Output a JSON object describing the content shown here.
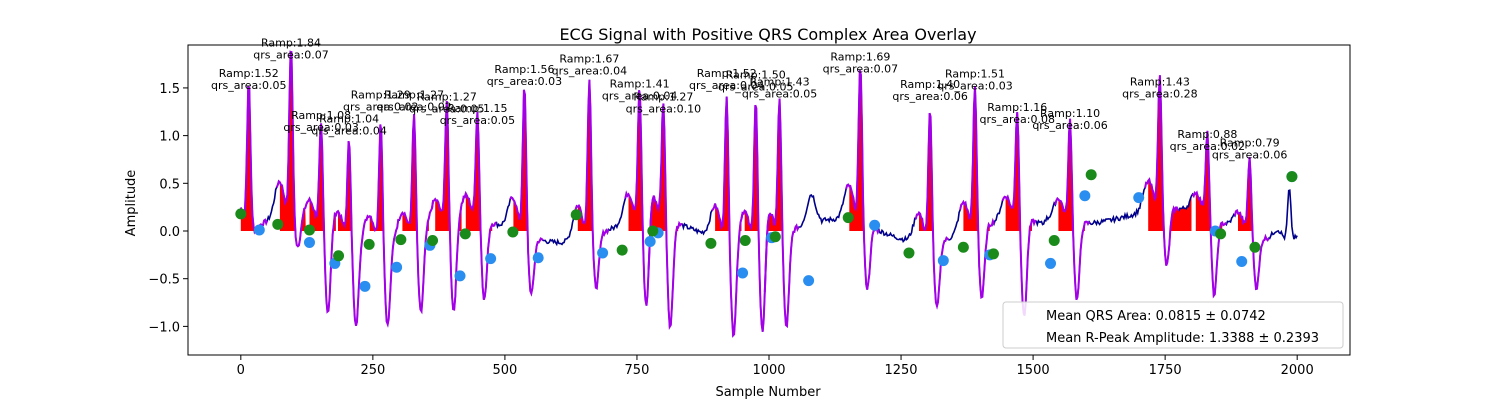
{
  "chart_data": {
    "type": "line",
    "title": "ECG Signal with Positive QRS Complex Area Overlay",
    "xlabel": "Sample Number",
    "ylabel": "Amplitude",
    "xlim": [
      -100,
      2100
    ],
    "ylim": [
      -1.3,
      1.95
    ],
    "xticks": [
      0,
      250,
      500,
      750,
      1000,
      1250,
      1500,
      1750,
      2000
    ],
    "xtick_labels": [
      "0",
      "250",
      "500",
      "750",
      "1000",
      "1250",
      "1500",
      "1750",
      "2000"
    ],
    "yticks": [
      -1.0,
      -0.5,
      0.0,
      0.5,
      1.0,
      1.5
    ],
    "ytick_labels": [
      "−1.0",
      "−0.5",
      "0.0",
      "0.5",
      "1.0",
      "1.5"
    ],
    "grid": false,
    "legend": {
      "placement": "lower right",
      "entries": [
        "Mean QRS Area: 0.0815 ± 0.0742",
        "Mean R-Peak Amplitude: 1.3388 ± 0.2393"
      ]
    },
    "colors": {
      "signal": "#00008b",
      "qrs_segment": "#a300e8",
      "area_fill": "#ff0000",
      "onset_marker": "#1a8a1a",
      "offset_marker": "#2a8ef0"
    },
    "series": [
      {
        "name": "Positive QRS Area",
        "note": "red shaded region under positive signal"
      },
      {
        "name": "QRS onset",
        "marker": "green dot"
      },
      {
        "name": "QRS offset",
        "marker": "blue dot"
      }
    ],
    "beats": [
      {
        "x": 15,
        "ramp": "1.52",
        "area": "0.05",
        "onset": [
          0,
          0.18
        ],
        "offset": [
          35,
          0.01
        ],
        "dip": -0.05
      },
      {
        "x": 95,
        "ramp": "1.84",
        "area": "0.07",
        "onset": [
          70,
          0.07
        ],
        "offset": [
          130,
          -0.12
        ],
        "dip": -0.28
      },
      {
        "x": 152,
        "ramp": "1.08",
        "area": "0.03",
        "onset": [
          130,
          0.01
        ],
        "offset": [
          178,
          -0.34
        ],
        "dip": -0.9
      },
      {
        "x": 205,
        "ramp": "1.04",
        "area": "0.04",
        "onset": [
          185,
          -0.26
        ],
        "offset": [
          235,
          -0.58
        ],
        "dip": -0.93
      },
      {
        "x": 265,
        "ramp": "1.29",
        "area": "0.02",
        "onset": [
          243,
          -0.14
        ],
        "offset": [
          295,
          -0.38
        ],
        "dip": -0.88
      },
      {
        "x": 328,
        "ramp": "1.27",
        "area": "0.02",
        "onset": [
          303,
          -0.09
        ],
        "offset": [
          358,
          -0.15
        ],
        "dip": -0.85
      },
      {
        "x": 390,
        "ramp": "1.27",
        "area": "0.05",
        "onset": [
          363,
          -0.1
        ],
        "offset": [
          415,
          -0.47
        ],
        "dip": -0.95
      },
      {
        "x": 448,
        "ramp": "1.15",
        "area": "0.05",
        "onset": [
          425,
          -0.03
        ],
        "offset": [
          473,
          -0.29
        ],
        "dip": -0.82
      },
      {
        "x": 537,
        "ramp": "1.56",
        "area": "0.03",
        "onset": [
          515,
          -0.01
        ],
        "offset": [
          563,
          -0.28
        ],
        "dip": -0.6
      },
      {
        "x": 660,
        "ramp": "1.67",
        "area": "0.04",
        "onset": [
          635,
          0.17
        ],
        "offset": [
          685,
          -0.23
        ],
        "dip": -0.55
      },
      {
        "x": 755,
        "ramp": "1.41",
        "area": "0.04",
        "onset": [
          722,
          -0.2
        ],
        "offset": [
          775,
          -0.11
        ],
        "dip": -1.05
      },
      {
        "x": 800,
        "ramp": "1.27",
        "area": "0.10",
        "onset": [
          780,
          0.0
        ],
        "offset": [
          790,
          -0.02
        ],
        "dip": -1.1
      },
      {
        "x": 920,
        "ramp": "1.52",
        "area": "0.04",
        "onset": [
          890,
          -0.13
        ],
        "offset": [
          950,
          -0.44
        ],
        "dip": -1.0
      },
      {
        "x": 975,
        "ramp": "1.50",
        "area": "0.05",
        "onset": [
          955,
          -0.1
        ],
        "offset": [
          1005,
          -0.07
        ],
        "dip": -1.12
      },
      {
        "x": 1020,
        "ramp": "1.43",
        "area": "0.05",
        "onset": [
          1012,
          -0.06
        ],
        "offset": [
          1075,
          -0.52
        ],
        "dip": -1.0
      },
      {
        "x": 1173,
        "ramp": "1.69",
        "area": "0.07",
        "onset": [
          1150,
          0.14
        ],
        "offset": [
          1200,
          0.06
        ],
        "dip": -0.65
      },
      {
        "x": 1305,
        "ramp": "1.40",
        "area": "0.06",
        "onset": [
          1265,
          -0.23
        ],
        "offset": [
          1330,
          -0.31
        ],
        "dip": -0.7
      },
      {
        "x": 1390,
        "ramp": "1.51",
        "area": "0.03",
        "onset": [
          1368,
          -0.17
        ],
        "offset": [
          1418,
          -0.25
        ],
        "dip": -0.75
      },
      {
        "x": 1470,
        "ramp": "1.16",
        "area": "0.08",
        "onset": [
          1425,
          -0.24
        ],
        "offset": [
          1533,
          -0.34
        ],
        "dip": -1.02
      },
      {
        "x": 1570,
        "ramp": "1.10",
        "area": "0.06",
        "onset": [
          1540,
          -0.1
        ],
        "offset": [
          1598,
          0.37
        ],
        "dip": -0.8
      },
      {
        "x": 1740,
        "ramp": "1.43",
        "area": "0.28",
        "onset": [
          1610,
          0.59
        ],
        "offset": [
          1700,
          0.35
        ],
        "dip": -0.6
      },
      {
        "x": 1830,
        "ramp": "0.88",
        "area": "0.02",
        "onset": [
          1855,
          -0.03
        ],
        "offset": [
          1845,
          0.0
        ],
        "dip": -0.78
      },
      {
        "x": 1910,
        "ramp": "0.79",
        "area": "0.06",
        "onset": [
          1920,
          -0.17
        ],
        "offset": [
          1895,
          -0.32
        ],
        "dip": -0.55
      },
      {
        "x": 1985,
        "ramp": "",
        "area": "",
        "onset": [
          1990,
          0.57
        ],
        "offset": [
          1990,
          0.57
        ],
        "dip": 0.05
      }
    ],
    "annotations": [
      {
        "lines": [
          "Ramp:1.52",
          "qrs_area:0.05"
        ],
        "x": 15,
        "y": 1.47
      },
      {
        "lines": [
          "Ramp:1.84",
          "qrs_area:0.07"
        ],
        "x": 95,
        "y": 1.79
      },
      {
        "lines": [
          "Ramp:1.08",
          "qrs_area:0.03"
        ],
        "x": 152,
        "y": 1.03
      },
      {
        "lines": [
          "Ramp:1.04",
          "qrs_area:0.04"
        ],
        "x": 205,
        "y": 0.99
      },
      {
        "lines": [
          "Ramp:1.29",
          "qrs_area:0.02"
        ],
        "x": 265,
        "y": 1.24
      },
      {
        "lines": [
          "Ramp:1.27",
          "qrs_area:0.02"
        ],
        "x": 328,
        "y": 1.24
      },
      {
        "lines": [
          "Ramp:1.27",
          "qrs_area:0.05"
        ],
        "x": 390,
        "y": 1.22
      },
      {
        "lines": [
          "Ramp:1.15",
          "qrs_area:0.05"
        ],
        "x": 448,
        "y": 1.1
      },
      {
        "lines": [
          "Ramp:1.56",
          "qrs_area:0.03"
        ],
        "x": 537,
        "y": 1.51
      },
      {
        "lines": [
          "Ramp:1.67",
          "qrs_area:0.04"
        ],
        "x": 660,
        "y": 1.62
      },
      {
        "lines": [
          "Ramp:1.41",
          "qrs_area:0.04"
        ],
        "x": 755,
        "y": 1.36
      },
      {
        "lines": [
          "Ramp:1.27",
          "qrs_area:0.10"
        ],
        "x": 800,
        "y": 1.22
      },
      {
        "lines": [
          "Ramp:1.52",
          "qrs_area:0.04"
        ],
        "x": 920,
        "y": 1.47
      },
      {
        "lines": [
          "Ramp:1.50",
          "qrs_area:0.05"
        ],
        "x": 975,
        "y": 1.45
      },
      {
        "lines": [
          "Ramp:1.43",
          "qrs_area:0.05"
        ],
        "x": 1020,
        "y": 1.38
      },
      {
        "lines": [
          "Ramp:1.69",
          "qrs_area:0.07"
        ],
        "x": 1173,
        "y": 1.64
      },
      {
        "lines": [
          "Ramp:1.40",
          "qrs_area:0.06"
        ],
        "x": 1305,
        "y": 1.35
      },
      {
        "lines": [
          "Ramp:1.51",
          "qrs_area:0.03"
        ],
        "x": 1390,
        "y": 1.46
      },
      {
        "lines": [
          "Ramp:1.16",
          "qrs_area:0.08"
        ],
        "x": 1470,
        "y": 1.11
      },
      {
        "lines": [
          "Ramp:1.10",
          "qrs_area:0.06"
        ],
        "x": 1570,
        "y": 1.05
      },
      {
        "lines": [
          "Ramp:1.43",
          "qrs_area:0.28"
        ],
        "x": 1740,
        "y": 1.38
      },
      {
        "lines": [
          "Ramp:0.88",
          "qrs_area:0.02"
        ],
        "x": 1830,
        "y": 0.83
      },
      {
        "lines": [
          "Ramp:0.79",
          "qrs_area:0.06"
        ],
        "x": 1910,
        "y": 0.74
      }
    ]
  }
}
